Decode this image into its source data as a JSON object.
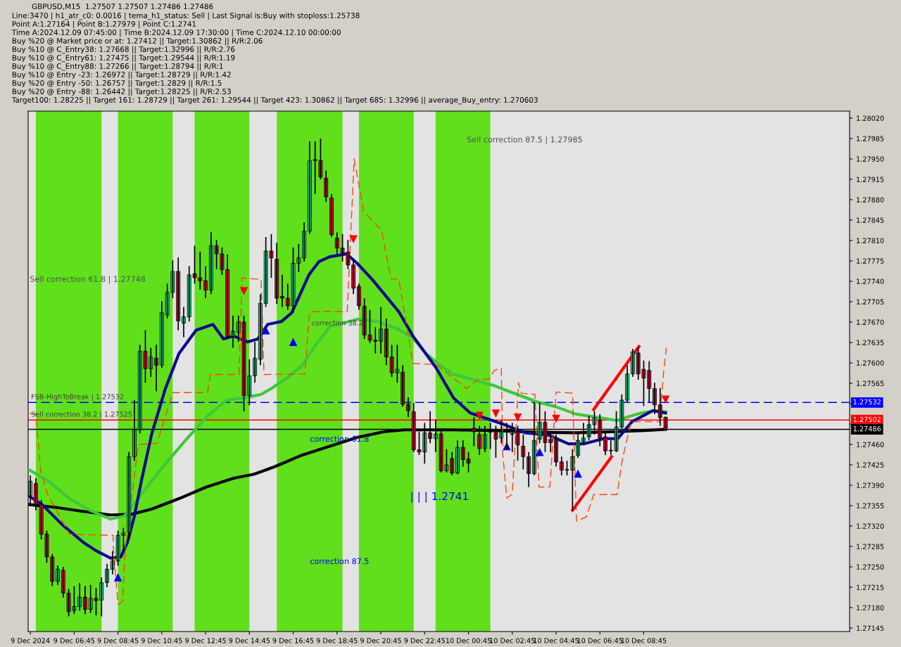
{
  "chart_data": {
    "type": "candlestick",
    "title": "GBPUSD,M15  1.27507 1.27507 1.27486 1.27486",
    "annotations": [
      "Line:3470 | h1_atr_c0: 0.0016 | tema_h1_status: Sell | Last Signal is:Buy with stoploss:1.25738",
      "Point A:1.27164 | Point B:1.27979 | Point C:1.2741",
      "Time A:2024.12.09 07:45:00 | Time B:2024.12.09 17:30:00 | Time C:2024.12.10 00:00:00",
      "Buy %20 @ Market price or at: 1.27412 || Target:1.30862 || R/R:2.06",
      "Buy %10 @ C_Entry38: 1.27668 || Target:1.32996 || R/R:2.76",
      "Buy %10 @ C_Entry61: 1.27475 || Target:1.29544 || R/R:1.19",
      "Buy %10 @ C_Entry88: 1.27266 || Target:1.28794 || R/R:1",
      "Buy %10 @ Entry -23: 1.26972 || Target:1.28729 || R/R:1.42",
      "Buy %20 @ Entry -50: 1.26757 || Target:1.2829 || R/R:1.5",
      "Buy %20 @ Entry -88: 1.26442 || Target:1.28225 || R/R:2.53",
      "Target100: 1.28225 || Target 161: 1.28729 || Target 261: 1.29544 || Target 423: 1.30862 || Target 685: 1.32996 || average_Buy_entry: 1.270603",
      "Sell correction 87.5 | 1.27985",
      "Sell correction 61.8 | 1.27748",
      "correction 61.8",
      "correction 87.5",
      "| | | 1.2741",
      {
        "text": "FSB-HighToBreak | 1.27532",
        "x": "2024-12-09T04:47",
        "y": 1.27535
      },
      {
        "text": "Sell correction 38.2 | 1.27525",
        "x": "2024-12-09T04:47",
        "y": 1.27505
      },
      {
        "text": "correction 38.2",
        "x": "2024-12-09T17:35",
        "y": 1.27662
      }
    ],
    "x": [
      "2024-12-09T04:45",
      "2024-12-09T05:00",
      "2024-12-09T05:15",
      "2024-12-09T05:30",
      "2024-12-09T05:45",
      "2024-12-09T06:00",
      "2024-12-09T06:15",
      "2024-12-09T06:30",
      "2024-12-09T06:45",
      "2024-12-09T07:00",
      "2024-12-09T07:15",
      "2024-12-09T07:30",
      "2024-12-09T07:45",
      "2024-12-09T08:00",
      "2024-12-09T08:15",
      "2024-12-09T08:30",
      "2024-12-09T08:45",
      "2024-12-09T09:00",
      "2024-12-09T09:15",
      "2024-12-09T09:30",
      "2024-12-09T09:45",
      "2024-12-09T10:00",
      "2024-12-09T10:15",
      "2024-12-09T10:30",
      "2024-12-09T10:45",
      "2024-12-09T11:00",
      "2024-12-09T11:15",
      "2024-12-09T11:30",
      "2024-12-09T11:45",
      "2024-12-09T12:00",
      "2024-12-09T12:15",
      "2024-12-09T12:30",
      "2024-12-09T12:45",
      "2024-12-09T13:00",
      "2024-12-09T13:15",
      "2024-12-09T13:30",
      "2024-12-09T13:45",
      "2024-12-09T14:00",
      "2024-12-09T14:15",
      "2024-12-09T14:30",
      "2024-12-09T14:45",
      "2024-12-09T15:00",
      "2024-12-09T15:15",
      "2024-12-09T15:30",
      "2024-12-09T15:45",
      "2024-12-09T16:00",
      "2024-12-09T16:15",
      "2024-12-09T16:30",
      "2024-12-09T16:45",
      "2024-12-09T17:00",
      "2024-12-09T17:15",
      "2024-12-09T17:30",
      "2024-12-09T17:45",
      "2024-12-09T18:00",
      "2024-12-09T18:15",
      "2024-12-09T18:30",
      "2024-12-09T18:45",
      "2024-12-09T19:00",
      "2024-12-09T19:15",
      "2024-12-09T19:30",
      "2024-12-09T19:45",
      "2024-12-09T20:00",
      "2024-12-09T20:15",
      "2024-12-09T20:30",
      "2024-12-09T20:45",
      "2024-12-09T21:00",
      "2024-12-09T21:15",
      "2024-12-09T21:30",
      "2024-12-09T21:45",
      "2024-12-09T22:00",
      "2024-12-09T22:15",
      "2024-12-09T22:30",
      "2024-12-09T22:45",
      "2024-12-09T23:00",
      "2024-12-09T23:15",
      "2024-12-09T23:30",
      "2024-12-09T23:45",
      "2024-12-10T00:00",
      "2024-12-10T00:15",
      "2024-12-10T00:30",
      "2024-12-10T00:45",
      "2024-12-10T01:00",
      "2024-12-10T01:15",
      "2024-12-10T01:30",
      "2024-12-10T01:45",
      "2024-12-10T02:00",
      "2024-12-10T02:15",
      "2024-12-10T02:30",
      "2024-12-10T02:45",
      "2024-12-10T03:00",
      "2024-12-10T03:15",
      "2024-12-10T03:30",
      "2024-12-10T03:45",
      "2024-12-10T04:00",
      "2024-12-10T04:15",
      "2024-12-10T04:30",
      "2024-12-10T04:45",
      "2024-12-10T05:00",
      "2024-12-10T05:15",
      "2024-12-10T05:30",
      "2024-12-10T05:45",
      "2024-12-10T06:00",
      "2024-12-10T06:15",
      "2024-12-10T06:30",
      "2024-12-10T06:45",
      "2024-12-10T07:00",
      "2024-12-10T07:15",
      "2024-12-10T07:30",
      "2024-12-10T07:45",
      "2024-12-10T08:00",
      "2024-12-10T08:15",
      "2024-12-10T08:30",
      "2024-12-10T08:45",
      "2024-12-10T09:00",
      "2024-12-10T09:15",
      "2024-12-10T09:30",
      "2024-12-10T09:45"
    ],
    "ohlc": [
      [
        1.27372,
        1.27407,
        1.27357,
        1.27397
      ],
      [
        1.27393,
        1.27402,
        1.27347,
        1.27357
      ],
      [
        1.27357,
        1.27365,
        1.27297,
        1.27306
      ],
      [
        1.27306,
        1.27312,
        1.27257,
        1.27267
      ],
      [
        1.27267,
        1.27272,
        1.27217,
        1.27225
      ],
      [
        1.27225,
        1.27252,
        1.27219,
        1.27246
      ],
      [
        1.27244,
        1.2725,
        1.27197,
        1.27205
      ],
      [
        1.27205,
        1.27212,
        1.27165,
        1.27173
      ],
      [
        1.27175,
        1.27217,
        1.27169,
        1.27182
      ],
      [
        1.27182,
        1.27222,
        1.27175,
        1.27198
      ],
      [
        1.27198,
        1.27217,
        1.27169,
        1.27177
      ],
      [
        1.27177,
        1.27219,
        1.27171,
        1.27196
      ],
      [
        1.27196,
        1.27214,
        1.27167,
        1.27192
      ],
      [
        1.27193,
        1.27232,
        1.27165,
        1.27223
      ],
      [
        1.27223,
        1.27255,
        1.27215,
        1.27246
      ],
      [
        1.27246,
        1.27277,
        1.27237,
        1.2726
      ],
      [
        1.2726,
        1.27312,
        1.27252,
        1.27304
      ],
      [
        1.27304,
        1.27317,
        1.27277,
        1.27308
      ],
      [
        1.2731,
        1.27447,
        1.27297,
        1.27439
      ],
      [
        1.27439,
        1.27536,
        1.27432,
        1.27485
      ],
      [
        1.27485,
        1.27631,
        1.27479,
        1.2762
      ],
      [
        1.2762,
        1.27656,
        1.27566,
        1.2759
      ],
      [
        1.2759,
        1.27626,
        1.27576,
        1.2761
      ],
      [
        1.27608,
        1.27631,
        1.27551,
        1.27596
      ],
      [
        1.27596,
        1.27706,
        1.27591,
        1.27686
      ],
      [
        1.27682,
        1.27736,
        1.27676,
        1.27721
      ],
      [
        1.27721,
        1.27776,
        1.27711,
        1.27757
      ],
      [
        1.27757,
        1.27781,
        1.27656,
        1.27672
      ],
      [
        1.27668,
        1.27696,
        1.27644,
        1.27679
      ],
      [
        1.27679,
        1.27766,
        1.27671,
        1.27751
      ],
      [
        1.27753,
        1.27801,
        1.27736,
        1.27746
      ],
      [
        1.27746,
        1.27791,
        1.27726,
        1.27741
      ],
      [
        1.27741,
        1.27766,
        1.27711,
        1.27725
      ],
      [
        1.27725,
        1.27824,
        1.27718,
        1.27801
      ],
      [
        1.27801,
        1.27811,
        1.27761,
        1.27787
      ],
      [
        1.27787,
        1.27798,
        1.27751,
        1.2776
      ],
      [
        1.2776,
        1.27786,
        1.27641,
        1.27645
      ],
      [
        1.27645,
        1.27681,
        1.27626,
        1.27654
      ],
      [
        1.27652,
        1.27681,
        1.27636,
        1.2767
      ],
      [
        1.2767,
        1.27681,
        1.27517,
        1.27544
      ],
      [
        1.27544,
        1.27606,
        1.27527,
        1.27578
      ],
      [
        1.27578,
        1.27636,
        1.27566,
        1.27608
      ],
      [
        1.27606,
        1.27718,
        1.27596,
        1.27702
      ],
      [
        1.27702,
        1.27816,
        1.27696,
        1.27792
      ],
      [
        1.27792,
        1.27821,
        1.27746,
        1.2778
      ],
      [
        1.27778,
        1.27806,
        1.27701,
        1.27711
      ],
      [
        1.27714,
        1.27751,
        1.27696,
        1.27711
      ],
      [
        1.27711,
        1.27736,
        1.27691,
        1.27698
      ],
      [
        1.27698,
        1.27798,
        1.27686,
        1.27771
      ],
      [
        1.27771,
        1.27804,
        1.27756,
        1.2778
      ],
      [
        1.2778,
        1.27841,
        1.27774,
        1.27826
      ],
      [
        1.27826,
        1.2798,
        1.27821,
        1.27947
      ],
      [
        1.27947,
        1.2798,
        1.2789,
        1.27949
      ],
      [
        1.27947,
        1.27985,
        1.27915,
        1.27919
      ],
      [
        1.27917,
        1.2793,
        1.27876,
        1.27885
      ],
      [
        1.27883,
        1.2789,
        1.27816,
        1.2782
      ],
      [
        1.27814,
        1.27824,
        1.27786,
        1.27797
      ],
      [
        1.27797,
        1.27821,
        1.27774,
        1.27789
      ],
      [
        1.2779,
        1.27811,
        1.27761,
        1.27768
      ],
      [
        1.27768,
        1.27776,
        1.27718,
        1.27728
      ],
      [
        1.27731,
        1.27736,
        1.27691,
        1.27698
      ],
      [
        1.27697,
        1.27711,
        1.27641,
        1.27648
      ],
      [
        1.27648,
        1.27691,
        1.27634,
        1.27639
      ],
      [
        1.27639,
        1.27661,
        1.27616,
        1.27637
      ],
      [
        1.27637,
        1.27696,
        1.27616,
        1.27658
      ],
      [
        1.27658,
        1.27676,
        1.27596,
        1.2761
      ],
      [
        1.2761,
        1.27631,
        1.27576,
        1.27583
      ],
      [
        1.27583,
        1.27631,
        1.27566,
        1.27589
      ],
      [
        1.27584,
        1.27596,
        1.27525,
        1.27529
      ],
      [
        1.27529,
        1.27541,
        1.27507,
        1.27518
      ],
      [
        1.27516,
        1.27531,
        1.27447,
        1.27451
      ],
      [
        1.27451,
        1.27482,
        1.27442,
        1.27447
      ],
      [
        1.27447,
        1.27497,
        1.27427,
        1.2748
      ],
      [
        1.2748,
        1.27517,
        1.27462,
        1.2747
      ],
      [
        1.2747,
        1.27502,
        1.27447,
        1.27478
      ],
      [
        1.27478,
        1.27487,
        1.27412,
        1.27415
      ],
      [
        1.27415,
        1.27452,
        1.27412,
        1.27425
      ],
      [
        1.27436,
        1.27447,
        1.27407,
        1.27411
      ],
      [
        1.27411,
        1.27467,
        1.27409,
        1.27455
      ],
      [
        1.27455,
        1.27467,
        1.27422,
        1.27434
      ],
      [
        1.27435,
        1.27447,
        1.27412,
        1.27428
      ],
      [
        1.27488,
        1.27507,
        1.27457,
        1.27482
      ],
      [
        1.27477,
        1.27492,
        1.27442,
        1.27453
      ],
      [
        1.27453,
        1.27492,
        1.27447,
        1.27477
      ],
      [
        1.27481,
        1.27497,
        1.27452,
        1.27482
      ],
      [
        1.27482,
        1.27492,
        1.27437,
        1.27469
      ],
      [
        1.27471,
        1.27502,
        1.27462,
        1.27482
      ],
      [
        1.27481,
        1.27497,
        1.27452,
        1.27482
      ],
      [
        1.27477,
        1.27497,
        1.27447,
        1.27482
      ],
      [
        1.27482,
        1.27492,
        1.27432,
        1.27459
      ],
      [
        1.27457,
        1.27477,
        1.27417,
        1.27439
      ],
      [
        1.27439,
        1.27447,
        1.27387,
        1.2741
      ],
      [
        1.2741,
        1.27532,
        1.27407,
        1.27467
      ],
      [
        1.27469,
        1.27532,
        1.27462,
        1.27498
      ],
      [
        1.27498,
        1.27517,
        1.27447,
        1.27463
      ],
      [
        1.27469,
        1.27482,
        1.27447,
        1.27463
      ],
      [
        1.27469,
        1.27477,
        1.27422,
        1.2743
      ],
      [
        1.2743,
        1.27439,
        1.27407,
        1.27416
      ],
      [
        1.27417,
        1.27432,
        1.27407,
        1.27416
      ],
      [
        1.27416,
        1.27452,
        1.27347,
        1.27439
      ],
      [
        1.27441,
        1.27482,
        1.27437,
        1.27467
      ],
      [
        1.27465,
        1.27497,
        1.27462,
        1.27471
      ],
      [
        1.27473,
        1.27509,
        1.27467,
        1.27494
      ],
      [
        1.27494,
        1.27517,
        1.27477,
        1.27506
      ],
      [
        1.27502,
        1.27512,
        1.27457,
        1.27471
      ],
      [
        1.27473,
        1.27482,
        1.27442,
        1.27449
      ],
      [
        1.2745,
        1.27467,
        1.27442,
        1.27449
      ],
      [
        1.27449,
        1.27517,
        1.27447,
        1.2749
      ],
      [
        1.2749,
        1.27546,
        1.27487,
        1.27536
      ],
      [
        1.27536,
        1.27596,
        1.27532,
        1.27581
      ],
      [
        1.27581,
        1.27624,
        1.27576,
        1.27619
      ],
      [
        1.27617,
        1.27626,
        1.27571,
        1.27581
      ],
      [
        1.27589,
        1.27604,
        1.27526,
        1.27574
      ],
      [
        1.27587,
        1.27603,
        1.27532,
        1.27556
      ],
      [
        1.27556,
        1.27566,
        1.27512,
        1.27528
      ],
      [
        1.27528,
        1.27557,
        1.27492,
        1.27506
      ],
      [
        1.27507,
        1.27507,
        1.27486,
        1.27486
      ]
    ],
    "series": [
      {
        "type": "line",
        "color": "#000000",
        "line_style": "solid",
        "x": [
          "2024-12-09T04:40",
          "2024-12-09T05:55",
          "2024-12-09T07:10",
          "2024-12-09T08:25",
          "2024-12-09T09:20",
          "2024-12-09T10:17",
          "2024-12-09T11:32",
          "2024-12-09T12:47",
          "2024-12-09T14:02",
          "2024-12-09T14:58",
          "2024-12-09T15:55",
          "2024-12-09T17:10",
          "2024-12-09T18:25",
          "2024-12-09T19:40",
          "2024-12-09T20:55",
          "2024-12-09T21:50",
          "2024-12-10T00:02",
          "2024-12-10T01:55",
          "2024-12-10T03:47",
          "2024-12-10T05:40",
          "2024-12-10T07:32",
          "2024-12-10T08:47",
          "2024-12-10T09:45"
        ],
        "values": [
          1.27357,
          1.27352,
          1.27345,
          1.27339,
          1.2734,
          1.27349,
          1.27367,
          1.27387,
          1.27402,
          1.27409,
          1.27422,
          1.27442,
          1.27457,
          1.27472,
          1.27482,
          1.27485,
          1.27485,
          1.27484,
          1.27481,
          1.2748,
          1.27482,
          1.27484,
          1.27486
        ]
      },
      {
        "type": "line",
        "color": "#3cc83c",
        "line_style": "solid",
        "x": [
          "2024-12-09T04:40",
          "2024-12-09T05:35",
          "2024-12-09T06:32",
          "2024-12-09T07:28",
          "2024-12-09T08:25",
          "2024-12-09T09:02",
          "2024-12-09T09:40",
          "2024-12-09T10:17",
          "2024-12-09T10:55",
          "2024-12-09T11:50",
          "2024-12-09T12:47",
          "2024-12-09T13:43",
          "2024-12-09T14:40",
          "2024-12-09T15:17",
          "2024-12-09T15:45",
          "2024-12-09T16:32",
          "2024-12-09T17:10",
          "2024-12-09T17:47",
          "2024-12-09T18:25",
          "2024-12-09T19:43",
          "2024-12-09T20:35",
          "2024-12-09T21:32",
          "2024-12-09T22:13",
          "2024-12-09T22:47",
          "2024-12-09T23:25",
          "2024-12-10T00:02",
          "2024-12-10T00:58",
          "2024-12-10T01:55",
          "2024-12-10T02:32",
          "2024-12-10T03:53",
          "2024-12-10T04:43",
          "2024-12-10T05:40",
          "2024-12-10T06:55",
          "2024-12-10T07:32",
          "2024-12-10T08:10",
          "2024-12-10T08:38",
          "2024-12-10T09:15",
          "2024-12-10T09:45"
        ],
        "values": [
          1.27417,
          1.27397,
          1.27367,
          1.27347,
          1.27332,
          1.27337,
          1.27367,
          1.27397,
          1.27427,
          1.27467,
          1.27507,
          1.27536,
          1.27541,
          1.27546,
          1.27556,
          1.27576,
          1.27596,
          1.27631,
          1.27662,
          1.27675,
          1.27671,
          1.27658,
          1.27643,
          1.27617,
          1.27597,
          1.27581,
          1.27571,
          1.27561,
          1.27552,
          1.27533,
          1.27525,
          1.27512,
          1.27505,
          1.27501,
          1.27509,
          1.27514,
          1.27518,
          1.27516
        ]
      },
      {
        "type": "line",
        "color": "#0a0a8c",
        "line_style": "solid",
        "x": [
          "2024-12-09T04:40",
          "2024-12-09T05:17",
          "2024-12-09T06:13",
          "2024-12-09T07:10",
          "2024-12-09T07:47",
          "2024-12-09T08:25",
          "2024-12-09T08:53",
          "2024-12-09T09:11",
          "2024-12-09T09:30",
          "2024-12-09T09:49",
          "2024-12-09T10:17",
          "2024-12-09T10:55",
          "2024-12-09T11:32",
          "2024-12-09T12:19",
          "2024-12-09T13:05",
          "2024-12-09T13:34",
          "2024-12-09T14:02",
          "2024-12-09T14:40",
          "2024-12-09T15:08",
          "2024-12-09T15:35",
          "2024-12-09T16:13",
          "2024-12-09T16:41",
          "2024-12-09T17:10",
          "2024-12-09T17:28",
          "2024-12-09T17:56",
          "2024-12-09T18:25",
          "2024-12-09T19:11",
          "2024-12-09T19:40",
          "2024-12-09T20:23",
          "2024-12-09T21:34",
          "2024-12-09T22:13",
          "2024-12-09T23:17",
          "2024-12-10T00:04",
          "2024-12-10T00:50",
          "2024-12-10T02:19",
          "2024-12-10T03:20",
          "2024-12-10T04:25",
          "2024-12-10T05:19",
          "2024-12-10T06:00",
          "2024-12-10T06:55",
          "2024-12-10T07:34",
          "2024-12-10T08:13",
          "2024-12-10T09:10",
          "2024-12-10T09:45"
        ],
        "values": [
          1.27372,
          1.27357,
          1.27322,
          1.27292,
          1.27277,
          1.27265,
          1.27267,
          1.27292,
          1.27337,
          1.27397,
          1.27477,
          1.27556,
          1.27616,
          1.27656,
          1.27666,
          1.27641,
          1.27646,
          1.27636,
          1.27641,
          1.27666,
          1.27671,
          1.27686,
          1.27726,
          1.27751,
          1.27774,
          1.27782,
          1.27787,
          1.27771,
          1.27742,
          1.27688,
          1.27646,
          1.27591,
          1.2754,
          1.27514,
          1.27495,
          1.2748,
          1.27476,
          1.27461,
          1.27461,
          1.2747,
          1.2747,
          1.27499,
          1.27518,
          1.27514
        ]
      },
      {
        "type": "line",
        "color": "#ff4500",
        "line_style": "dashed",
        "x": [
          "2024-12-09T04:43",
          "2024-12-09T05:00",
          "2024-12-09T05:13",
          "2024-12-09T05:32",
          "2024-12-09T06:32",
          "2024-12-09T08:32",
          "2024-12-09T08:32",
          "2024-12-09T08:45",
          "2024-12-09T08:58",
          "2024-12-09T09:05",
          "2024-12-09T09:41",
          "2024-12-09T10:32",
          "2024-12-09T11:15",
          "2024-12-09T12:50",
          "2024-12-09T12:58",
          "2024-12-09T14:17",
          "2024-12-09T14:25",
          "2024-12-09T15:17",
          "2024-12-09T15:25",
          "2024-12-09T17:17",
          "2024-12-09T17:30",
          "2024-12-09T19:13",
          "2024-12-09T19:32",
          "2024-12-09T19:58",
          "2024-12-09T20:47",
          "2024-12-09T21:13",
          "2024-12-09T21:34",
          "2024-12-09T22:13",
          "2024-12-09T23:17",
          "2024-12-10T00:40",
          "2024-12-10T01:13",
          "2024-12-10T01:41",
          "2024-12-10T01:56",
          "2024-12-10T02:15",
          "2024-12-10T02:19",
          "2024-12-10T02:30",
          "2024-12-10T02:45",
          "2024-12-10T03:02",
          "2024-12-10T03:10",
          "2024-12-10T03:47",
          "2024-12-10T03:58",
          "2024-12-10T04:28",
          "2024-12-10T04:45",
          "2024-12-10T05:30",
          "2024-12-10T05:41",
          "2024-12-10T06:08",
          "2024-12-10T06:28",
          "2024-12-10T07:32",
          "2024-12-10T07:47",
          "2024-12-10T08:11",
          "2024-12-10T09:28",
          "2024-12-10T09:40",
          "2024-12-10T09:47"
        ],
        "values": [
          1.27513,
          1.27513,
          1.27416,
          1.27375,
          1.27306,
          1.27304,
          1.27287,
          1.27186,
          1.27191,
          1.27283,
          1.2746,
          1.27462,
          1.27549,
          1.27549,
          1.2758,
          1.2758,
          1.27746,
          1.27743,
          1.2758,
          1.27581,
          1.27688,
          1.27688,
          1.2795,
          1.2786,
          1.27827,
          1.27744,
          1.27744,
          1.27599,
          1.27597,
          1.27556,
          1.27572,
          1.27572,
          1.27587,
          1.27591,
          1.27444,
          1.27368,
          1.27375,
          1.27566,
          1.27548,
          1.27546,
          1.27387,
          1.27387,
          1.2755,
          1.27548,
          1.27328,
          1.27336,
          1.27374,
          1.27374,
          1.27436,
          1.27499,
          1.27499,
          1.27587,
          1.27626
        ]
      },
      {
        "type": "line",
        "color": "#ff0000",
        "line_style": "solid",
        "x": [
          "2024-12-10T06:28",
          "2024-12-10T08:32"
        ],
        "values": [
          1.2752,
          1.27628
        ]
      },
      {
        "type": "line",
        "color": "#ff0000",
        "line_style": "solid",
        "x": [
          "2024-12-10T05:30",
          "2024-12-10T07:17"
        ],
        "values": [
          1.27347,
          1.27439
        ]
      },
      {
        "type": "scatter",
        "color": "#0000ff",
        "marker": "triangle",
        "x": [
          "2024-12-09T08:45",
          "2024-12-09T15:30",
          "2024-12-09T16:45",
          "2024-12-10T02:30",
          "2024-12-10T04:00",
          "2024-12-10T05:45"
        ],
        "values": [
          1.27232,
          1.27656,
          1.27636,
          1.27457,
          1.27447,
          1.2741
        ]
      },
      {
        "type": "scatter",
        "color": "#ff0000",
        "marker": "triangle_down",
        "x": [
          "2024-12-09T14:30",
          "2024-12-09T19:30",
          "2024-12-10T01:15",
          "2024-12-10T02:00",
          "2024-12-10T03:00",
          "2024-12-10T04:45",
          "2024-12-10T09:45"
        ],
        "values": [
          1.27723,
          1.27812,
          1.27509,
          1.27513,
          1.27506,
          1.27504,
          1.27537
        ]
      }
    ],
    "bands": [
      {
        "axis": "x",
        "from": "2024-12-09T05:00",
        "to": "2024-12-09T08:00",
        "color": "#60e01a"
      },
      {
        "axis": "x",
        "from": "2024-12-09T08:45",
        "to": "2024-12-09T11:15",
        "color": "#60e01a"
      },
      {
        "axis": "x",
        "from": "2024-12-09T12:15",
        "to": "2024-12-09T14:45",
        "color": "#60e01a"
      },
      {
        "axis": "x",
        "from": "2024-12-09T16:00",
        "to": "2024-12-09T19:00",
        "color": "#60e01a"
      },
      {
        "axis": "x",
        "from": "2024-12-09T19:45",
        "to": "2024-12-09T22:15",
        "color": "#60e01a"
      },
      {
        "axis": "x",
        "from": "2024-12-09T23:15",
        "to": "2024-12-10T01:45",
        "color": "#60e01a"
      }
    ],
    "ref_lines": [
      {
        "axis": "y",
        "value": 1.27532,
        "label": "1.27532",
        "color": "#0000ff",
        "line_style": "dashed"
      },
      {
        "axis": "y",
        "value": 1.27502,
        "label": "1.27502",
        "color": "#ff0000",
        "line_style": "solid"
      },
      {
        "axis": "y",
        "value": 1.27486,
        "label": "1.27486",
        "color": "#000000",
        "line_style": "solid"
      }
    ],
    "xlim": [
      "2024-12-09T04:39",
      "2024-12-10T18:09"
    ],
    "ylim": [
      1.27139,
      1.28032
    ],
    "xticks": [
      {
        "value": "2024-12-09T04:45",
        "label": "9 Dec 2024"
      },
      {
        "value": "2024-12-09T06:45",
        "label": "9 Dec 06:45"
      },
      {
        "value": "2024-12-09T08:45",
        "label": "9 Dec 08:45"
      },
      {
        "value": "2024-12-09T10:45",
        "label": "9 Dec 10:45"
      },
      {
        "value": "2024-12-09T12:45",
        "label": "9 Dec 12:45"
      },
      {
        "value": "2024-12-09T14:45",
        "label": "9 Dec 14:45"
      },
      {
        "value": "2024-12-09T16:45",
        "label": "9 Dec 16:45"
      },
      {
        "value": "2024-12-09T18:45",
        "label": "9 Dec 18:45"
      },
      {
        "value": "2024-12-09T20:45",
        "label": "9 Dec 20:45"
      },
      {
        "value": "2024-12-09T22:45",
        "label": "9 Dec 22:45"
      },
      {
        "value": "2024-12-10T00:45",
        "label": "10 Dec 00:45"
      },
      {
        "value": "2024-12-10T02:45",
        "label": "10 Dec 02:45"
      },
      {
        "value": "2024-12-10T04:45",
        "label": "10 Dec 04:45"
      },
      {
        "value": "2024-12-10T06:45",
        "label": "10 Dec 06:45"
      },
      {
        "value": "2024-12-10T08:45",
        "label": "10 Dec 08:45"
      }
    ],
    "yticks": [
      {
        "value": 1.27145,
        "label": "1.27145"
      },
      {
        "value": 1.2718,
        "label": "1.27180"
      },
      {
        "value": 1.27215,
        "label": "1.27215"
      },
      {
        "value": 1.2725,
        "label": "1.27250"
      },
      {
        "value": 1.27285,
        "label": "1.27285"
      },
      {
        "value": 1.2732,
        "label": "1.27320"
      },
      {
        "value": 1.27355,
        "label": "1.27355"
      },
      {
        "value": 1.2739,
        "label": "1.27390"
      },
      {
        "value": 1.27425,
        "label": "1.27425"
      },
      {
        "value": 1.2746,
        "label": "1.27460"
      },
      {
        "value": 1.27495,
        "label": null
      },
      {
        "value": 1.2753,
        "label": null
      },
      {
        "value": 1.27565,
        "label": "1.27565"
      },
      {
        "value": 1.276,
        "label": "1.27600"
      },
      {
        "value": 1.27635,
        "label": "1.27635"
      },
      {
        "value": 1.2767,
        "label": "1.27670"
      },
      {
        "value": 1.27705,
        "label": "1.27705"
      },
      {
        "value": 1.2774,
        "label": "1.27740"
      },
      {
        "value": 1.27775,
        "label": "1.27775"
      },
      {
        "value": 1.2781,
        "label": "1.27810"
      },
      {
        "value": 1.27845,
        "label": "1.27845"
      },
      {
        "value": 1.2788,
        "label": "1.27880"
      },
      {
        "value": 1.27915,
        "label": "1.27915"
      },
      {
        "value": 1.2795,
        "label": "1.27950"
      },
      {
        "value": 1.27985,
        "label": "1.27985"
      },
      {
        "value": 1.2802,
        "label": "1.28020"
      }
    ]
  }
}
